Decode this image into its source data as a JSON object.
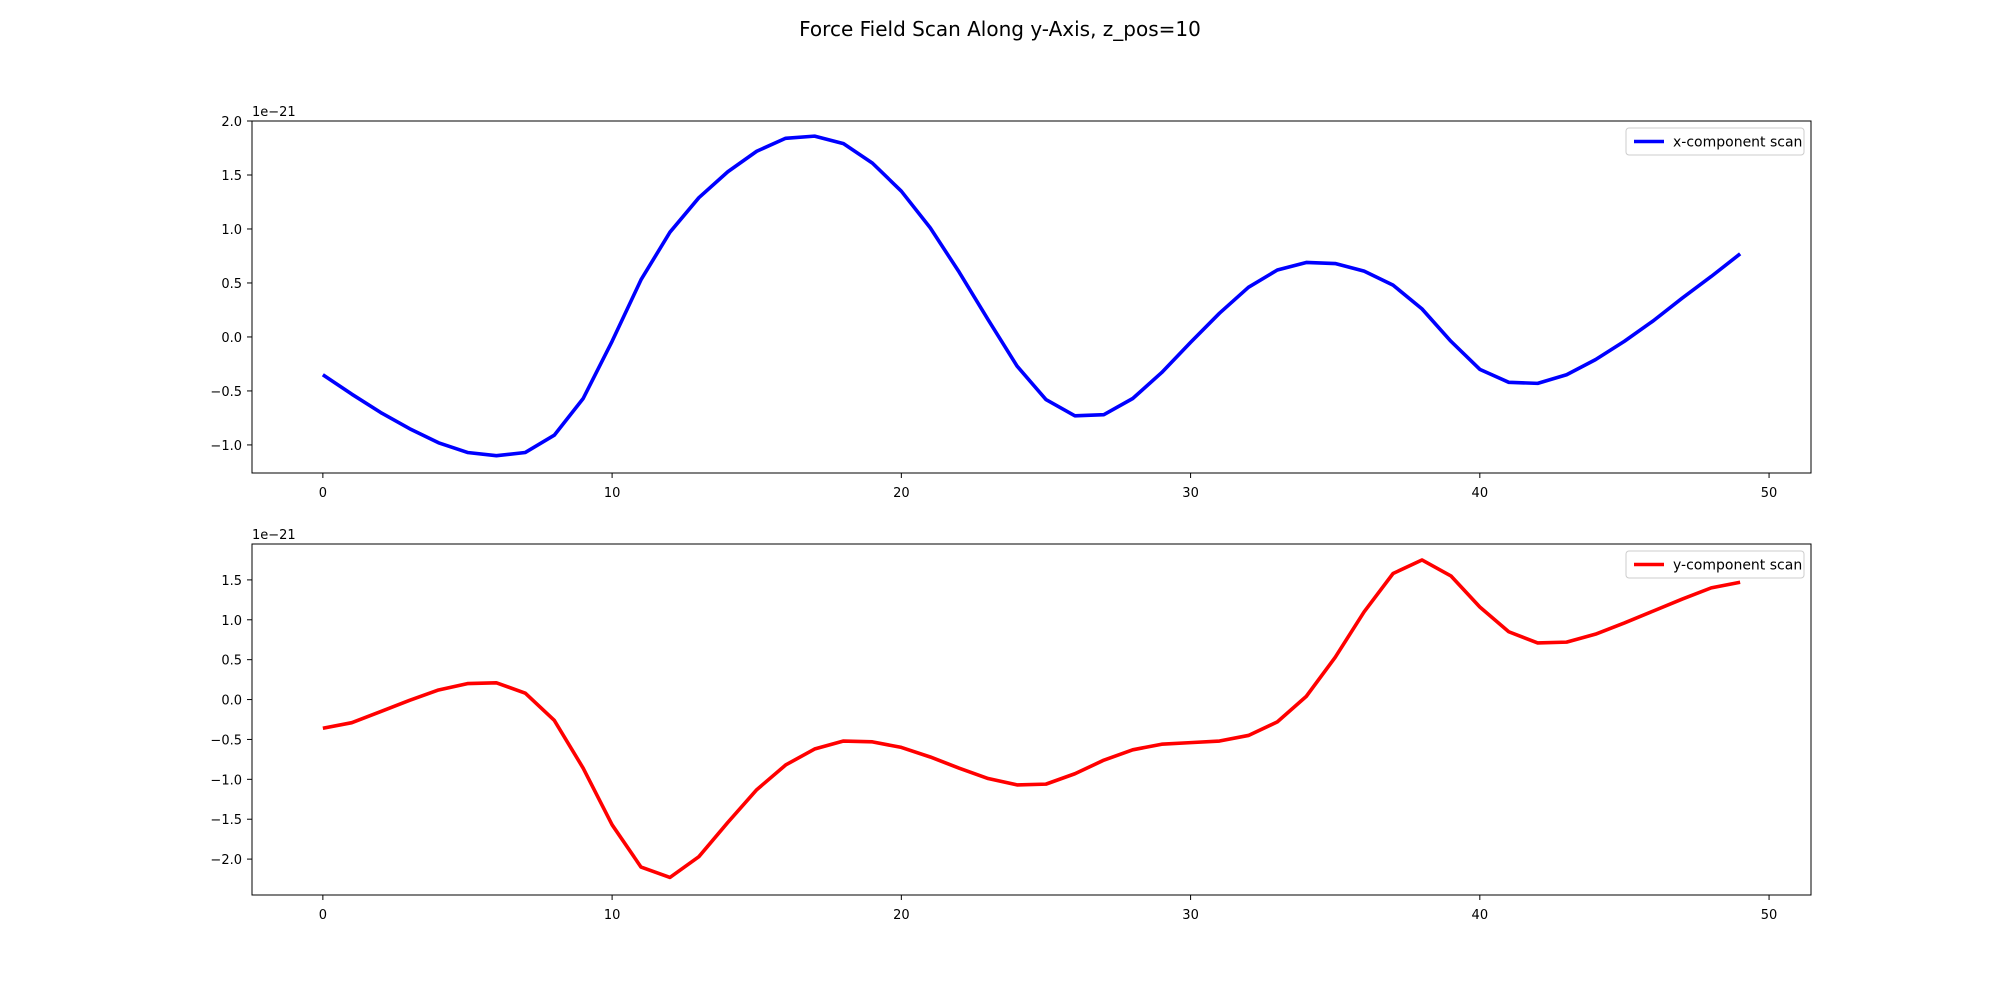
{
  "figure_title": "Force Field Scan Along y-Axis, z_pos=10",
  "chart_data": [
    {
      "type": "line",
      "title": "",
      "xlabel": "",
      "ylabel": "",
      "offset_label": "1e−21",
      "xlim": [
        -2.45,
        51.45
      ],
      "ylim": [
        -1.26,
        2.0
      ],
      "xticks": [
        0,
        10,
        20,
        30,
        40,
        50
      ],
      "xtick_labels": [
        "0",
        "10",
        "20",
        "30",
        "40",
        "50"
      ],
      "yticks": [
        -1.0,
        -0.5,
        0.0,
        0.5,
        1.0,
        1.5,
        2.0
      ],
      "ytick_labels": [
        "−1.0",
        "−0.5",
        "0.0",
        "0.5",
        "1.0",
        "1.5",
        "2.0"
      ],
      "grid": false,
      "legend_position": "top-right",
      "series": [
        {
          "name": "x-component scan",
          "color": "#0000ff",
          "x": [
            0,
            1,
            2,
            3,
            4,
            5,
            6,
            7,
            8,
            9,
            10,
            11,
            12,
            13,
            14,
            15,
            16,
            17,
            18,
            19,
            20,
            21,
            22,
            23,
            24,
            25,
            26,
            27,
            28,
            29,
            30,
            31,
            32,
            33,
            34,
            35,
            36,
            37,
            38,
            39,
            40,
            41,
            42,
            43,
            44,
            45,
            46,
            47,
            48,
            49
          ],
          "y": [
            -0.35,
            -0.53,
            -0.7,
            -0.85,
            -0.98,
            -1.07,
            -1.1,
            -1.07,
            -0.91,
            -0.57,
            -0.04,
            0.53,
            0.97,
            1.29,
            1.53,
            1.72,
            1.84,
            1.86,
            1.79,
            1.61,
            1.35,
            1.01,
            0.6,
            0.16,
            -0.27,
            -0.58,
            -0.73,
            -0.72,
            -0.57,
            -0.33,
            -0.05,
            0.22,
            0.46,
            0.62,
            0.69,
            0.68,
            0.61,
            0.48,
            0.26,
            -0.04,
            -0.3,
            -0.42,
            -0.43,
            -0.35,
            -0.21,
            -0.04,
            0.15,
            0.36,
            0.56,
            0.77
          ]
        }
      ]
    },
    {
      "type": "line",
      "title": "",
      "xlabel": "",
      "ylabel": "",
      "offset_label": "1e−21",
      "xlim": [
        -2.45,
        51.45
      ],
      "ylim": [
        -2.45,
        1.95
      ],
      "xticks": [
        0,
        10,
        20,
        30,
        40,
        50
      ],
      "xtick_labels": [
        "0",
        "10",
        "20",
        "30",
        "40",
        "50"
      ],
      "yticks": [
        -2.0,
        -1.5,
        -1.0,
        -0.5,
        0.0,
        0.5,
        1.0,
        1.5
      ],
      "ytick_labels": [
        "−2.0",
        "−1.5",
        "−1.0",
        "−0.5",
        "0.0",
        "0.5",
        "1.0",
        "1.5"
      ],
      "grid": false,
      "legend_position": "top-right",
      "series": [
        {
          "name": "y-component scan",
          "color": "#ff0000",
          "x": [
            0,
            1,
            2,
            3,
            4,
            5,
            6,
            7,
            8,
            9,
            10,
            11,
            12,
            13,
            14,
            15,
            16,
            17,
            18,
            19,
            20,
            21,
            22,
            23,
            24,
            25,
            26,
            27,
            28,
            29,
            30,
            31,
            32,
            33,
            34,
            35,
            36,
            37,
            38,
            39,
            40,
            41,
            42,
            43,
            44,
            45,
            46,
            47,
            48,
            49
          ],
          "y": [
            -0.36,
            -0.29,
            -0.15,
            -0.01,
            0.12,
            0.2,
            0.21,
            0.08,
            -0.26,
            -0.86,
            -1.57,
            -2.1,
            -2.23,
            -1.97,
            -1.54,
            -1.13,
            -0.82,
            -0.62,
            -0.52,
            -0.53,
            -0.6,
            -0.72,
            -0.86,
            -0.99,
            -1.07,
            -1.06,
            -0.93,
            -0.76,
            -0.63,
            -0.56,
            -0.54,
            -0.52,
            -0.45,
            -0.28,
            0.04,
            0.53,
            1.1,
            1.58,
            1.75,
            1.55,
            1.16,
            0.85,
            0.71,
            0.72,
            0.82,
            0.96,
            1.11,
            1.26,
            1.4,
            1.47
          ]
        }
      ]
    }
  ]
}
